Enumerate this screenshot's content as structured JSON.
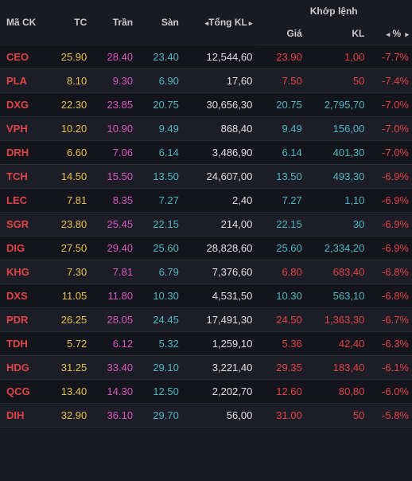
{
  "colors": {
    "yellow": "#e6c24d",
    "magenta": "#d957c2",
    "cyan": "#4db8c2",
    "red": "#e04545",
    "white": "#e0e0e0",
    "bg": "#1a1a24",
    "row_odd": "#14141c",
    "row_even": "#1d1d27",
    "border": "#2a2a34"
  },
  "headers": {
    "ma_ck": "Mã CK",
    "tc": "TC",
    "tran": "Trần",
    "san": "Sàn",
    "tong_kl": "Tổng KL",
    "khop_lenh": "Khớp lệnh",
    "gia": "Giá",
    "kl": "KL",
    "pct": "%"
  },
  "rows": [
    {
      "sym": "CEO",
      "tc": "25.90",
      "tran": "28.40",
      "san": "23.40",
      "tongkl": "12,544,60",
      "gia": "23.90",
      "kl": "1,00",
      "pct": "-7.7%",
      "gia_color": "red",
      "kl_color": "red"
    },
    {
      "sym": "PLA",
      "tc": "8.10",
      "tran": "9.30",
      "san": "6.90",
      "tongkl": "17,60",
      "gia": "7.50",
      "kl": "50",
      "pct": "-7.4%",
      "gia_color": "red",
      "kl_color": "red"
    },
    {
      "sym": "DXG",
      "tc": "22.30",
      "tran": "23.85",
      "san": "20.75",
      "tongkl": "30,656,30",
      "gia": "20.75",
      "kl": "2,795,70",
      "pct": "-7.0%",
      "gia_color": "cyan",
      "kl_color": "cyan"
    },
    {
      "sym": "VPH",
      "tc": "10.20",
      "tran": "10.90",
      "san": "9.49",
      "tongkl": "868,40",
      "gia": "9.49",
      "kl": "156,00",
      "pct": "-7.0%",
      "gia_color": "cyan",
      "kl_color": "cyan"
    },
    {
      "sym": "DRH",
      "tc": "6.60",
      "tran": "7.06",
      "san": "6.14",
      "tongkl": "3,486,90",
      "gia": "6.14",
      "kl": "401,30",
      "pct": "-7.0%",
      "gia_color": "cyan",
      "kl_color": "cyan"
    },
    {
      "sym": "TCH",
      "tc": "14.50",
      "tran": "15.50",
      "san": "13.50",
      "tongkl": "24,607,00",
      "gia": "13.50",
      "kl": "493,30",
      "pct": "-6.9%",
      "gia_color": "cyan",
      "kl_color": "cyan"
    },
    {
      "sym": "LEC",
      "tc": "7.81",
      "tran": "8.35",
      "san": "7.27",
      "tongkl": "2,40",
      "gia": "7.27",
      "kl": "1,10",
      "pct": "-6.9%",
      "gia_color": "cyan",
      "kl_color": "cyan"
    },
    {
      "sym": "SGR",
      "tc": "23.80",
      "tran": "25.45",
      "san": "22.15",
      "tongkl": "214,00",
      "gia": "22.15",
      "kl": "30",
      "pct": "-6.9%",
      "gia_color": "cyan",
      "kl_color": "cyan"
    },
    {
      "sym": "DIG",
      "tc": "27.50",
      "tran": "29.40",
      "san": "25.60",
      "tongkl": "28,828,60",
      "gia": "25.60",
      "kl": "2,334,20",
      "pct": "-6.9%",
      "gia_color": "cyan",
      "kl_color": "cyan"
    },
    {
      "sym": "KHG",
      "tc": "7.30",
      "tran": "7.81",
      "san": "6.79",
      "tongkl": "7,376,60",
      "gia": "6.80",
      "kl": "683,40",
      "pct": "-6.8%",
      "gia_color": "red",
      "kl_color": "red"
    },
    {
      "sym": "DXS",
      "tc": "11.05",
      "tran": "11.80",
      "san": "10.30",
      "tongkl": "4,531,50",
      "gia": "10.30",
      "kl": "563,10",
      "pct": "-6.8%",
      "gia_color": "cyan",
      "kl_color": "cyan"
    },
    {
      "sym": "PDR",
      "tc": "26.25",
      "tran": "28.05",
      "san": "24.45",
      "tongkl": "17,491,30",
      "gia": "24.50",
      "kl": "1,363,30",
      "pct": "-6.7%",
      "gia_color": "red",
      "kl_color": "red"
    },
    {
      "sym": "TDH",
      "tc": "5.72",
      "tran": "6.12",
      "san": "5.32",
      "tongkl": "1,259,10",
      "gia": "5.36",
      "kl": "42,40",
      "pct": "-6.3%",
      "gia_color": "red",
      "kl_color": "red"
    },
    {
      "sym": "HDG",
      "tc": "31.25",
      "tran": "33.40",
      "san": "29.10",
      "tongkl": "3,221,40",
      "gia": "29.35",
      "kl": "183,40",
      "pct": "-6.1%",
      "gia_color": "red",
      "kl_color": "red"
    },
    {
      "sym": "QCG",
      "tc": "13.40",
      "tran": "14.30",
      "san": "12.50",
      "tongkl": "2,202,70",
      "gia": "12.60",
      "kl": "80,80",
      "pct": "-6.0%",
      "gia_color": "red",
      "kl_color": "red"
    },
    {
      "sym": "DIH",
      "tc": "32.90",
      "tran": "36.10",
      "san": "29.70",
      "tongkl": "56,00",
      "gia": "31.00",
      "kl": "50",
      "pct": "-5.8%",
      "gia_color": "red",
      "kl_color": "red"
    }
  ]
}
